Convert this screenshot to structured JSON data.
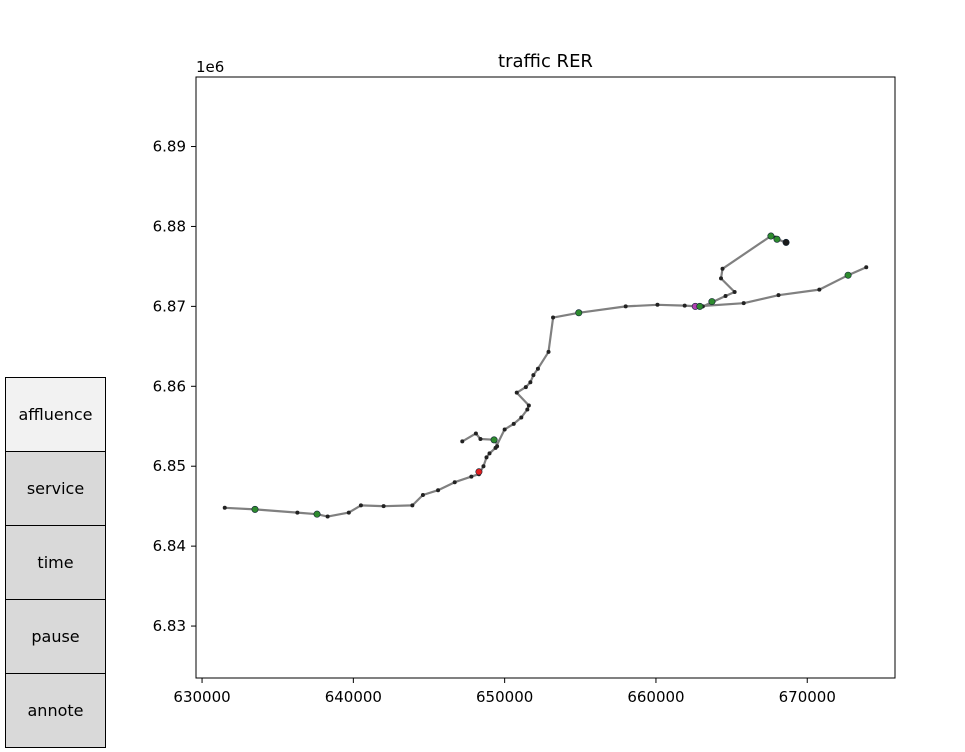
{
  "chart_data": {
    "type": "line",
    "title": "traffic RER",
    "offset_label": "1e6",
    "xlim": [
      629600,
      675800
    ],
    "ylim": [
      6.8235,
      6.8987
    ],
    "xticks": [
      630000,
      640000,
      650000,
      660000,
      670000
    ],
    "yticks": [
      6.83,
      6.84,
      6.85,
      6.86,
      6.87,
      6.88,
      6.89
    ],
    "line_color": "#808080",
    "series": [
      {
        "values": [
          [
            631500,
            6.8448
          ],
          [
            633500,
            6.8446
          ],
          [
            636300,
            6.8442
          ],
          [
            637600,
            6.844
          ],
          [
            638300,
            6.8437
          ],
          [
            639700,
            6.8442
          ],
          [
            640500,
            6.8451
          ],
          [
            642000,
            6.845
          ],
          [
            643900,
            6.8451
          ],
          [
            644600,
            6.8464
          ],
          [
            645600,
            6.847
          ],
          [
            646700,
            6.848
          ],
          [
            647800,
            6.8487
          ],
          [
            648300,
            6.849
          ],
          [
            648600,
            6.85
          ],
          [
            648800,
            6.8511
          ],
          [
            649000,
            6.8516
          ],
          [
            649400,
            6.8523
          ],
          [
            650000,
            6.8546
          ],
          [
            650600,
            6.8553
          ],
          [
            651100,
            6.8561
          ],
          [
            651500,
            6.8571
          ],
          [
            651600,
            6.8576
          ],
          [
            650800,
            6.8592
          ],
          [
            651400,
            6.8599
          ],
          [
            651700,
            6.8605
          ],
          [
            651900,
            6.8614
          ],
          [
            652200,
            6.8622
          ],
          [
            652900,
            6.8643
          ],
          [
            653200,
            6.8686
          ],
          [
            654900,
            6.8692
          ],
          [
            658000,
            6.87
          ],
          [
            660100,
            6.8702
          ],
          [
            661900,
            6.8701
          ],
          [
            662700,
            6.87
          ],
          [
            663100,
            6.87
          ],
          [
            663800,
            6.8706
          ],
          [
            664600,
            6.8713
          ],
          [
            665200,
            6.8718
          ],
          [
            664300,
            6.8735
          ],
          [
            664400,
            6.8747
          ],
          [
            667600,
            6.8788
          ],
          [
            667900,
            6.8786
          ],
          [
            668000,
            6.8784
          ],
          [
            668600,
            6.878
          ]
        ]
      },
      {
        "values": [
          [
            662700,
            6.87
          ],
          [
            665800,
            6.8704
          ],
          [
            668100,
            6.8714
          ],
          [
            670800,
            6.8721
          ],
          [
            672700,
            6.8739
          ],
          [
            673900,
            6.8749
          ]
        ]
      },
      {
        "values": [
          [
            647200,
            6.8531
          ],
          [
            648100,
            6.8541
          ],
          [
            648400,
            6.8534
          ],
          [
            649400,
            6.8533
          ],
          [
            649500,
            6.8525
          ]
        ]
      }
    ],
    "highlight_points": [
      {
        "x": 633500,
        "y": 6.8446,
        "color": "#2e8b2e"
      },
      {
        "x": 637600,
        "y": 6.844,
        "color": "#2e8b2e"
      },
      {
        "x": 649300,
        "y": 6.8533,
        "color": "#2e8b2e"
      },
      {
        "x": 654900,
        "y": 6.8692,
        "color": "#2e8b2e"
      },
      {
        "x": 663700,
        "y": 6.8706,
        "color": "#2e8b2e"
      },
      {
        "x": 667600,
        "y": 6.8788,
        "color": "#2e8b2e"
      },
      {
        "x": 668000,
        "y": 6.8784,
        "color": "#2e8b2e"
      },
      {
        "x": 668600,
        "y": 6.878,
        "color": "#1a1a1a"
      },
      {
        "x": 672700,
        "y": 6.8739,
        "color": "#2e8b2e"
      },
      {
        "x": 648300,
        "y": 6.8493,
        "color": "#e02020"
      },
      {
        "x": 662600,
        "y": 6.87,
        "color": "#b040b0"
      },
      {
        "x": 662900,
        "y": 6.87,
        "color": "#2e8b2e"
      }
    ]
  },
  "buttons": [
    {
      "label": "affluence",
      "active": true
    },
    {
      "label": "service",
      "active": false
    },
    {
      "label": "time",
      "active": false
    },
    {
      "label": "pause",
      "active": false
    },
    {
      "label": "annote",
      "active": false
    }
  ]
}
